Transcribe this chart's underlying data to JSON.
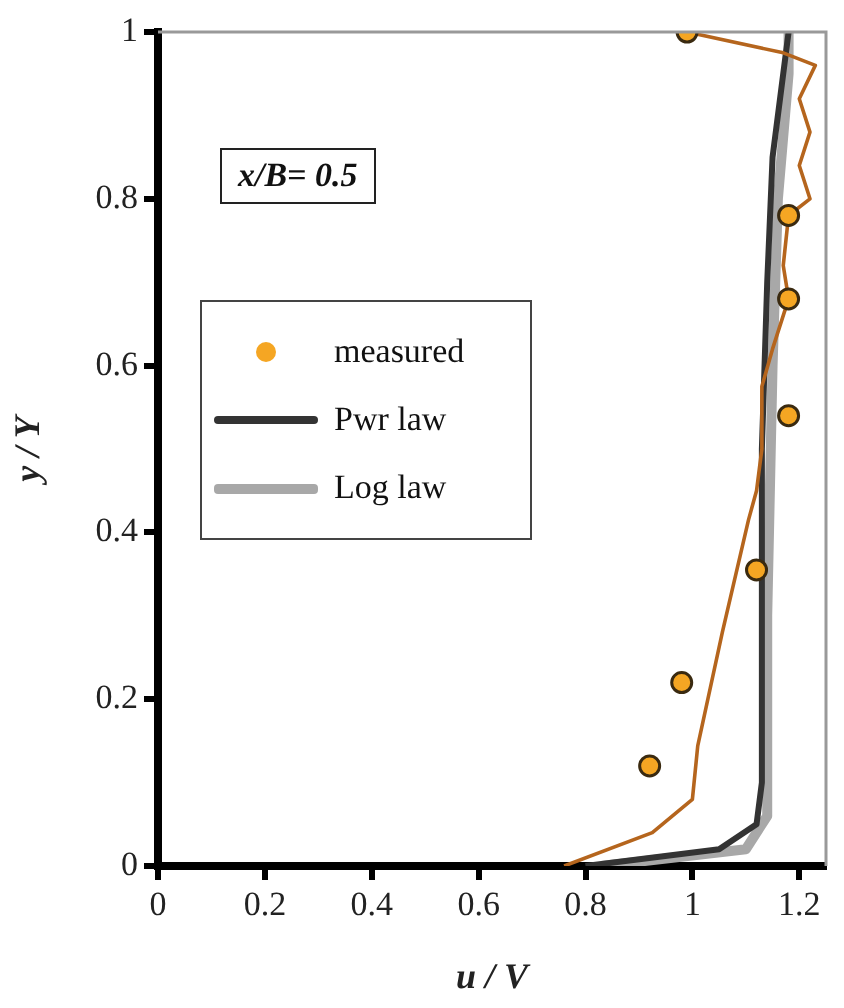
{
  "chart_data": {
    "type": "line",
    "xlabel": "u / V",
    "ylabel": "y / Y",
    "annotations": [
      "x/B= 0.5"
    ],
    "xlim": [
      0,
      1.25
    ],
    "xticks": [
      0,
      0.2,
      0.4,
      0.6,
      0.8,
      1,
      1.2
    ],
    "ylim": [
      0,
      1
    ],
    "yticks": [
      0,
      0.2,
      0.4,
      0.6,
      0.8,
      1
    ],
    "grid": false,
    "legend": "left",
    "series": [
      {
        "name": "measured",
        "type": "scatter",
        "marker": "circle",
        "color": "#f5a623",
        "x": [
          0.99,
          1.18,
          1.18,
          1.18,
          1.12,
          0.98,
          0.92
        ],
        "values": [
          1,
          0.78,
          0.68,
          0.54,
          0.355,
          0.22,
          0.12
        ]
      },
      {
        "color": "#b5651d",
        "x": [
          0.76,
          0.925,
          1.0,
          1.01,
          1.056,
          1.105,
          1.12,
          1.13,
          1.13,
          1.15,
          1.18,
          1.17,
          1.18,
          1.22,
          1.2,
          1.22,
          1.2,
          1.23,
          1.17,
          0.99
        ],
        "values": [
          0,
          0.04,
          0.08,
          0.144,
          0.28,
          0.415,
          0.45,
          0.5,
          0.575,
          0.62,
          0.68,
          0.72,
          0.78,
          0.8,
          0.84,
          0.88,
          0.92,
          0.96,
          0.975,
          1
        ]
      },
      {
        "name": "Pwr law",
        "color": "#333333",
        "x": [
          0.8,
          1.05,
          1.12,
          1.13,
          1.13,
          1.14,
          1.15,
          1.17,
          1.18
        ],
        "values": [
          0,
          0.02,
          0.05,
          0.1,
          0.5,
          0.7,
          0.85,
          0.95,
          1
        ]
      },
      {
        "name": "Log law",
        "color": "#a8a8a8",
        "x": [
          0.83,
          1.1,
          1.14,
          1.14,
          1.15,
          1.16,
          1.18,
          1.18
        ],
        "values": [
          0,
          0.02,
          0.06,
          0.3,
          0.6,
          0.8,
          0.95,
          1
        ]
      }
    ]
  }
}
